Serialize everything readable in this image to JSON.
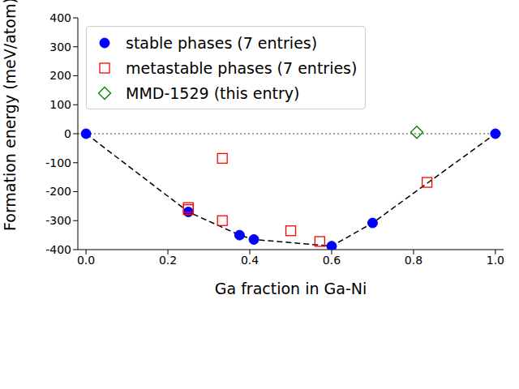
{
  "chart_data": {
    "type": "scatter",
    "x_label": "Ga fraction in Ga-Ni",
    "y_label": "Formation energy (meV/atom)",
    "xlim": [
      -0.02,
      1.02
    ],
    "ylim": [
      -400,
      400
    ],
    "xticks": [
      {
        "value": 0,
        "label": "0.0"
      },
      0.2,
      0.4,
      0.6,
      0.8,
      {
        "value": 1,
        "label": "1.0"
      }
    ],
    "yticks": [
      -400,
      -300,
      -200,
      -100,
      0,
      100,
      200,
      300,
      400
    ],
    "reference_y": 0,
    "legend": "upper left",
    "series": [
      {
        "name": "stable phases (7 entries)",
        "color": "#0000ff",
        "marker": "circle",
        "line_style": "dashed",
        "x": [
          0,
          0.25,
          0.375,
          0.41,
          0.6,
          0.7,
          1
        ],
        "y": [
          0,
          -270,
          -350,
          -365,
          -388,
          -308,
          0
        ]
      },
      {
        "name": "metastable phases (7 entries)",
        "color": "#ff0000",
        "marker": "square",
        "x": [
          0.25,
          0.25,
          0.333,
          0.333,
          0.5,
          0.571,
          0.833
        ],
        "y": [
          -255,
          -262,
          -85,
          -300,
          -335,
          -372,
          -168
        ]
      },
      {
        "name": "MMD-1529 (this entry)",
        "color": "#008000",
        "marker": "diamond",
        "x": [
          0.808
        ],
        "y": [
          5
        ]
      }
    ]
  }
}
